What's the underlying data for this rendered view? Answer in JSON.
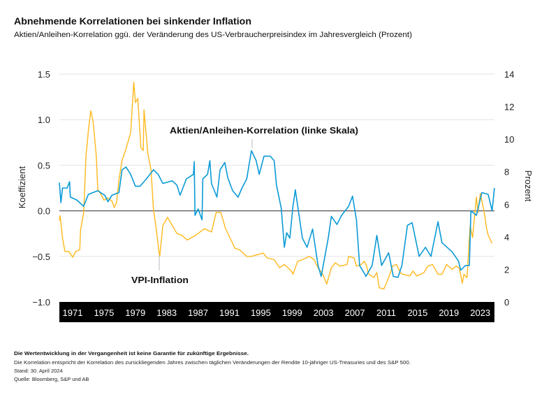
{
  "title": "Abnehmende Korrelationen bei sinkender Inflation",
  "subtitle": "Aktien/Anleihen-Korrelation ggü. der Veränderung des US-Verbraucherpreisindex im Jahresvergleich (Prozent)",
  "footer": {
    "disclaimer": "Die Wertentwicklung in der Vergangenheit ist keine Garantie für zukünftige Ergebnisse.",
    "note": "Die Korrelation entspricht der Korrelation des zurückliegenden Jahres zwischen täglichen Veränderungen der Rendite 10-jähriger US-Treasuries und des S&P 500.",
    "date": "Stand: 30. April 2024",
    "source": "Quelle: Bloomberg, S&P und AB"
  },
  "chart_data": {
    "type": "line",
    "ylabel": "Koeffizient",
    "y2label": "Prozent",
    "xlim": [
      1969.3,
      2024.8
    ],
    "ylim": [
      -1.0,
      1.5
    ],
    "y2lim": [
      0,
      14
    ],
    "yticks": [
      "1.5",
      "1.0",
      "0.5",
      "0.0",
      "−0.5",
      "−1.0"
    ],
    "ytick_values": [
      1.5,
      1.0,
      0.5,
      0.0,
      -0.5,
      -1.0
    ],
    "y2ticks": [
      "14",
      "12",
      "10",
      "8",
      "6",
      "4",
      "2",
      "0"
    ],
    "y2tick_values": [
      14,
      12,
      10,
      8,
      6,
      4,
      2,
      0
    ],
    "xticks": [
      "1971",
      "1975",
      "1979",
      "1983",
      "1987",
      "1991",
      "1995",
      "1999",
      "2003",
      "2007",
      "2011",
      "2015",
      "2019",
      "2023"
    ],
    "grid": true,
    "colors": {
      "correlation": "#0A9AD6",
      "inflation": "#FFB81C",
      "zero_line": "#555555",
      "grid": "#e3e3e3",
      "axis_band": "#000000"
    },
    "annotations": {
      "correlation": "Aktien/Anleihen-Korrelation (linke Skala)",
      "inflation": "VPI-Inflation"
    },
    "series": [
      {
        "name": "Aktien/Anleihen-Korrelation (linke Skala)",
        "axis": "left",
        "points": [
          [
            1969.3,
            0.31
          ],
          [
            1969.5,
            0.09
          ],
          [
            1969.7,
            0.25
          ],
          [
            1970.3,
            0.25
          ],
          [
            1970.6,
            0.32
          ],
          [
            1970.7,
            0.15
          ],
          [
            1971.5,
            0.12
          ],
          [
            1972.4,
            0.05
          ],
          [
            1973,
            0.18
          ],
          [
            1974.2,
            0.22
          ],
          [
            1975.1,
            0.17
          ],
          [
            1975.5,
            0.1
          ],
          [
            1976,
            0.17
          ],
          [
            1976.9,
            0.2
          ],
          [
            1977.3,
            0.45
          ],
          [
            1977.8,
            0.48
          ],
          [
            1978.4,
            0.4
          ],
          [
            1979,
            0.27
          ],
          [
            1979.6,
            0.27
          ],
          [
            1980.4,
            0.35
          ],
          [
            1981.3,
            0.45
          ],
          [
            1981.9,
            0.4
          ],
          [
            1982.5,
            0.3
          ],
          [
            1983.7,
            0.33
          ],
          [
            1984.3,
            0.28
          ],
          [
            1984.7,
            0.17
          ],
          [
            1985.5,
            0.35
          ],
          [
            1986.4,
            0.4
          ],
          [
            1986.5,
            0.54
          ],
          [
            1986.6,
            -0.05
          ],
          [
            1987,
            0.02
          ],
          [
            1987.5,
            -0.1
          ],
          [
            1987.6,
            0.35
          ],
          [
            1988.2,
            0.4
          ],
          [
            1988.5,
            0.55
          ],
          [
            1988.7,
            0.3
          ],
          [
            1989.4,
            0.15
          ],
          [
            1989.8,
            0.45
          ],
          [
            1990.4,
            0.53
          ],
          [
            1990.8,
            0.36
          ],
          [
            1991.4,
            0.22
          ],
          [
            1992.1,
            0.15
          ],
          [
            1992.6,
            0.25
          ],
          [
            1993.2,
            0.35
          ],
          [
            1993.8,
            0.66
          ],
          [
            1994.4,
            0.55
          ],
          [
            1994.8,
            0.4
          ],
          [
            1995.4,
            0.6
          ],
          [
            1996.2,
            0.6
          ],
          [
            1996.7,
            0.55
          ],
          [
            1997,
            0.28
          ],
          [
            1997.6,
            0.03
          ],
          [
            1998,
            -0.4
          ],
          [
            1998.3,
            -0.24
          ],
          [
            1998.7,
            -0.3
          ],
          [
            1999.1,
            0.05
          ],
          [
            1999.4,
            0.23
          ],
          [
            2000.3,
            -0.3
          ],
          [
            2000.9,
            -0.4
          ],
          [
            2001.6,
            -0.2
          ],
          [
            2002.3,
            -0.6
          ],
          [
            2002.7,
            -0.72
          ],
          [
            2003.6,
            -0.3
          ],
          [
            2004,
            -0.06
          ],
          [
            2004.7,
            -0.15
          ],
          [
            2005.3,
            -0.05
          ],
          [
            2006.2,
            0.05
          ],
          [
            2006.7,
            0.16
          ],
          [
            2007.2,
            -0.1
          ],
          [
            2007.6,
            -0.6
          ],
          [
            2008.3,
            -0.7
          ],
          [
            2008.4,
            -0.72
          ],
          [
            2009.2,
            -0.6
          ],
          [
            2009.8,
            -0.27
          ],
          [
            2010.4,
            -0.6
          ],
          [
            2011.3,
            -0.46
          ],
          [
            2011.9,
            -0.72
          ],
          [
            2012.5,
            -0.73
          ],
          [
            2013,
            -0.6
          ],
          [
            2013.7,
            -0.16
          ],
          [
            2014.3,
            -0.13
          ],
          [
            2015.2,
            -0.5
          ],
          [
            2016,
            -0.4
          ],
          [
            2016.7,
            -0.5
          ],
          [
            2017.6,
            -0.12
          ],
          [
            2018.1,
            -0.35
          ],
          [
            2019.4,
            -0.45
          ],
          [
            2020.2,
            -0.55
          ],
          [
            2020.5,
            -0.65
          ],
          [
            2021.1,
            -0.6
          ],
          [
            2021.6,
            -0.6
          ],
          [
            2021.8,
            0.0
          ],
          [
            2022.5,
            -0.05
          ],
          [
            2023.2,
            0.2
          ],
          [
            2024,
            0.18
          ],
          [
            2024.5,
            0.0
          ],
          [
            2024.8,
            0.25
          ]
        ]
      },
      {
        "name": "VPI-Inflation",
        "axis": "right",
        "points": [
          [
            1969.3,
            5.0
          ],
          [
            1969.4,
            5.3
          ],
          [
            1969.7,
            3.95
          ],
          [
            1970,
            3.1
          ],
          [
            1970.5,
            3.1
          ],
          [
            1971,
            2.75
          ],
          [
            1971.4,
            3.1
          ],
          [
            1971.9,
            3.2
          ],
          [
            1972,
            4.4
          ],
          [
            1972.4,
            5.5
          ],
          [
            1972.7,
            9.0
          ],
          [
            1973,
            10.5
          ],
          [
            1973.3,
            11.75
          ],
          [
            1973.6,
            11.1
          ],
          [
            1974,
            9.0
          ],
          [
            1974.2,
            6.9
          ],
          [
            1974.5,
            6.7
          ],
          [
            1975,
            6.25
          ],
          [
            1975.4,
            6.4
          ],
          [
            1976,
            6.2
          ],
          [
            1976.3,
            5.8
          ],
          [
            1976.6,
            6.1
          ],
          [
            1976.9,
            7.5
          ],
          [
            1977.3,
            8.7
          ],
          [
            1977.8,
            9.4
          ],
          [
            1978.4,
            10.4
          ],
          [
            1978.8,
            13.5
          ],
          [
            1979,
            12.25
          ],
          [
            1979.3,
            12.5
          ],
          [
            1979.7,
            9.5
          ],
          [
            1980,
            9.3
          ],
          [
            1980.1,
            11.8
          ],
          [
            1980.6,
            9.1
          ],
          [
            1981,
            8.1
          ],
          [
            1981.3,
            5.7
          ],
          [
            1981.6,
            4.7
          ],
          [
            1982,
            3.1
          ],
          [
            1982.1,
            2.8
          ],
          [
            1982.5,
            4.7
          ],
          [
            1983.1,
            5.2
          ],
          [
            1984.3,
            4.2
          ],
          [
            1984.9,
            4.1
          ],
          [
            1985.6,
            3.8
          ],
          [
            1986.7,
            4.1
          ],
          [
            1987.8,
            4.5
          ],
          [
            1988.7,
            4.3
          ],
          [
            1989.3,
            5.5
          ],
          [
            1989.9,
            5.5
          ],
          [
            1990.5,
            4.5
          ],
          [
            1990.9,
            4.1
          ],
          [
            1991.7,
            3.3
          ],
          [
            1992.3,
            3.2
          ],
          [
            1993.2,
            2.8
          ],
          [
            1993.8,
            2.8
          ],
          [
            1995.3,
            3.0
          ],
          [
            1995.8,
            2.7
          ],
          [
            1996.7,
            2.6
          ],
          [
            1997.4,
            2.1
          ],
          [
            1998,
            2.3
          ],
          [
            1998.9,
            1.9
          ],
          [
            1999.1,
            1.7
          ],
          [
            1999.7,
            2.5
          ],
          [
            2000.3,
            2.6
          ],
          [
            2001.2,
            2.8
          ],
          [
            2001.8,
            2.6
          ],
          [
            2002.3,
            2.1
          ],
          [
            2002.9,
            1.7
          ],
          [
            2003.4,
            1.1
          ],
          [
            2004,
            2.1
          ],
          [
            2004.5,
            2.4
          ],
          [
            2005.1,
            2.2
          ],
          [
            2006,
            2.3
          ],
          [
            2006.2,
            2.8
          ],
          [
            2006.9,
            2.7
          ],
          [
            2007.2,
            2.2
          ],
          [
            2007.8,
            2.3
          ],
          [
            2008.2,
            2.5
          ],
          [
            2008.5,
            2.2
          ],
          [
            2008.7,
            1.73
          ],
          [
            2009.4,
            1.5
          ],
          [
            2009.8,
            1.8
          ],
          [
            2010.1,
            0.87
          ],
          [
            2010.7,
            0.8
          ],
          [
            2011.3,
            1.5
          ],
          [
            2011.8,
            2.2
          ],
          [
            2012.3,
            2.3
          ],
          [
            2012.8,
            1.8
          ],
          [
            2013.1,
            1.7
          ],
          [
            2014,
            1.6
          ],
          [
            2014.4,
            1.9
          ],
          [
            2014.9,
            1.6
          ],
          [
            2015.8,
            1.8
          ],
          [
            2016.3,
            2.2
          ],
          [
            2016.9,
            2.3
          ],
          [
            2017.6,
            1.7
          ],
          [
            2018.1,
            1.7
          ],
          [
            2018.7,
            2.3
          ],
          [
            2019.4,
            2.0
          ],
          [
            2019.9,
            2.2
          ],
          [
            2020.3,
            2.1
          ],
          [
            2020.7,
            1.15
          ],
          [
            2020.9,
            1.7
          ],
          [
            2021.3,
            1.5
          ],
          [
            2021.7,
            4.7
          ],
          [
            2022,
            3.95
          ],
          [
            2022.5,
            6.45
          ],
          [
            2022.7,
            5.5
          ],
          [
            2023,
            6.67
          ],
          [
            2023.5,
            5.5
          ],
          [
            2023.8,
            4.5
          ],
          [
            2024,
            4.1
          ],
          [
            2024.5,
            3.6
          ]
        ]
      }
    ]
  }
}
